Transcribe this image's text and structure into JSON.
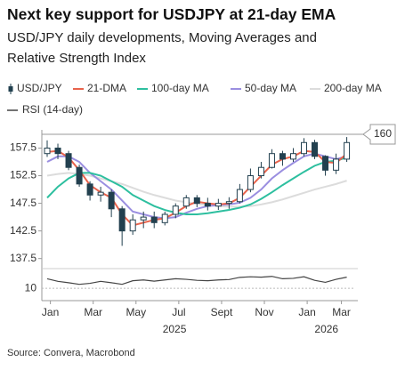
{
  "chart_data": {
    "type": "candlestick",
    "title": "Next key support for USDJPY at 21-day EMA",
    "subtitle": "USD/JPY daily developments, Moving Averages and Relative Strength Index",
    "source": "Source: Convera, Macrobond",
    "x": [
      0.25,
      0.75,
      1.25,
      1.75,
      2.25,
      2.75,
      3.25,
      3.75,
      4.25,
      4.75,
      5.25,
      5.75,
      6.25,
      6.75,
      7.25,
      7.75,
      8.25,
      8.75,
      9.25,
      9.75,
      10.25,
      10.75,
      11.25,
      11.75,
      12.25,
      12.75,
      13.25,
      13.75,
      14.25
    ],
    "xlim": [
      0,
      14.6
    ],
    "xticks": [
      {
        "value": 0.4,
        "label": "Jan"
      },
      {
        "value": 2.4,
        "label": "Mar"
      },
      {
        "value": 4.4,
        "label": "May"
      },
      {
        "value": 6.4,
        "label": "Jul"
      },
      {
        "value": 8.4,
        "label": "Sept"
      },
      {
        "value": 10.4,
        "label": "Nov"
      },
      {
        "value": 12.4,
        "label": "Jan"
      },
      {
        "value": 14.0,
        "label": "Mar"
      }
    ],
    "year_labels": [
      {
        "value": 6.2,
        "label": "2025"
      },
      {
        "value": 13.3,
        "label": "2026"
      }
    ],
    "ylim": [
      136,
      160.8
    ],
    "yticks": [
      137.5,
      142.5,
      147.5,
      152.5,
      157.5
    ],
    "reference_line": 160,
    "candles": {
      "name": "USD/JPY",
      "color": "#22404f",
      "open": [
        156.5,
        157.5,
        156.5,
        154,
        151,
        149,
        149.5,
        146.5,
        142.5,
        144.5,
        145,
        144,
        145.5,
        147,
        148.5,
        147.5,
        147,
        147.5,
        147.8,
        150,
        152.5,
        154,
        156.5,
        155.5,
        156.5,
        158.5,
        156,
        153.5,
        155.5
      ],
      "high": [
        158.9,
        158.3,
        157,
        154.5,
        151.5,
        150.5,
        150,
        147,
        145.5,
        146,
        146,
        146,
        147.5,
        149,
        149,
        148.5,
        148.3,
        148.6,
        151,
        153.8,
        155,
        157.3,
        157,
        157.5,
        159.3,
        159,
        156.2,
        156.5,
        159.5
      ],
      "low": [
        155.9,
        155.5,
        153.5,
        150.5,
        148,
        147.8,
        145,
        139.8,
        141.8,
        143,
        143,
        143.5,
        144.8,
        146.5,
        146.8,
        146.2,
        146.3,
        146.5,
        147.5,
        149.5,
        152,
        153.8,
        154.3,
        155,
        156,
        155.5,
        152.5,
        152.8,
        155
      ],
      "close": [
        157.5,
        156.5,
        154,
        151,
        149,
        149.5,
        146.5,
        142.5,
        144.5,
        145,
        144,
        145.5,
        147,
        148.5,
        147.5,
        147,
        147.5,
        147.8,
        150,
        152.5,
        154,
        156.5,
        155.5,
        156.5,
        158.5,
        156,
        153.5,
        155.5,
        158.5
      ]
    },
    "series": [
      {
        "name": "21-DMA",
        "color": "#e8634c",
        "values": [
          156.8,
          157,
          155.8,
          153.5,
          150.8,
          149.5,
          148.5,
          145.5,
          143.5,
          144,
          144.5,
          144.8,
          145.8,
          147,
          147.8,
          147.5,
          147.3,
          147.5,
          148.5,
          150.5,
          152.5,
          154.5,
          155.5,
          156,
          157,
          156.8,
          155,
          154.8,
          156.5
        ]
      },
      {
        "name": "100-day MA",
        "color": "#2dbf9f",
        "values": [
          148.5,
          150.5,
          152,
          153,
          153,
          152.5,
          151.5,
          150.5,
          149,
          148,
          147,
          146.3,
          145.8,
          145.5,
          145.5,
          145.7,
          146,
          146.3,
          146.7,
          147.3,
          148.3,
          149.5,
          150.8,
          152,
          153.2,
          154.3,
          155,
          155.2,
          155.8
        ]
      },
      {
        "name": "50-day MA",
        "color": "#9a8ee0",
        "values": [
          155,
          156,
          156,
          155,
          153,
          151.5,
          150,
          148,
          146,
          145.5,
          145,
          144.8,
          145,
          145.8,
          146.5,
          147,
          147.2,
          147.3,
          147.6,
          148.5,
          150,
          152,
          153.5,
          154.8,
          156,
          156.5,
          156,
          155.5,
          156
        ]
      },
      {
        "name": "200-day MA",
        "color": "#dcdcdc",
        "values": [
          152.5,
          152.8,
          153,
          152.8,
          152.5,
          152,
          151.5,
          151,
          150.3,
          149.6,
          149,
          148.5,
          148,
          147.7,
          147.4,
          147.2,
          147,
          146.9,
          146.9,
          147,
          147.3,
          147.7,
          148.2,
          148.8,
          149.4,
          150,
          150.5,
          151,
          151.6
        ]
      }
    ],
    "rsi": {
      "name": "RSI (14-day)",
      "color": "#444444",
      "ylim": [
        -25,
        100
      ],
      "yticks": [
        10
      ],
      "values": [
        58,
        45,
        38,
        30,
        35,
        45,
        38,
        30,
        48,
        52,
        46,
        52,
        58,
        55,
        50,
        48,
        52,
        54,
        65,
        68,
        66,
        70,
        58,
        60,
        68,
        50,
        40,
        55,
        66
      ]
    }
  }
}
